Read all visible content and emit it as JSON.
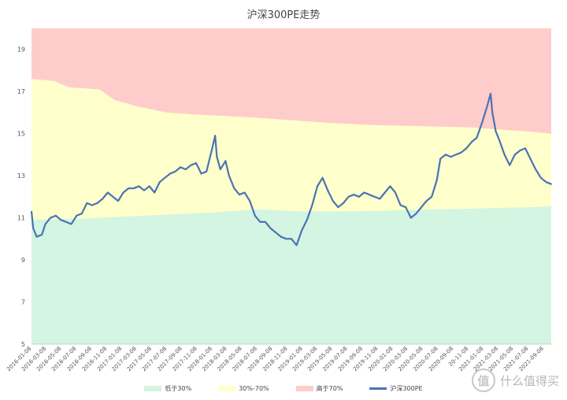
{
  "chart_data": {
    "type": "area",
    "title": "沪深300PE走势",
    "xlabel": "",
    "ylabel": "",
    "ylim": [
      5,
      20
    ],
    "xlim": [
      "2016-01-08",
      "2021-10-08"
    ],
    "yticks": [
      5,
      7,
      9,
      11,
      13,
      15,
      17,
      19
    ],
    "xticks": [
      "2016-01-08",
      "2016-03-08",
      "2016-05-08",
      "2016-07-08",
      "2016-09-08",
      "2016-11-08",
      "2017-01-08",
      "2017-03-08",
      "2017-05-08",
      "2017-07-08",
      "2017-09-08",
      "2017-11-08",
      "2018-01-08",
      "2018-03-08",
      "2018-05-08",
      "2018-07-08",
      "2018-09-08",
      "2018-11-08",
      "2019-01-08",
      "2019-03-08",
      "2019-05-08",
      "2019-07-08",
      "2019-09-08",
      "2019-11-08",
      "2020-01-08",
      "2020-03-08",
      "2020-05-08",
      "2020-07-08",
      "2020-09-08",
      "20-11-08",
      "2021-01-08",
      "2021-03-08",
      "2021-05-08",
      "2021-07-08",
      "2021-09-08"
    ],
    "legend_position": "bottom",
    "grid": false,
    "series": [
      {
        "name": "低于30%",
        "kind": "band",
        "color": "#d3f5e1",
        "x": [
          "2016-01-08",
          "2016-07-08",
          "2017-01-08",
          "2017-07-08",
          "2018-01-08",
          "2018-07-08",
          "2019-01-08",
          "2019-07-08",
          "2020-01-08",
          "2020-07-08",
          "2021-01-08",
          "2021-07-08",
          "2021-10-08"
        ],
        "values": [
          10.9,
          10.95,
          11.05,
          11.15,
          11.25,
          11.4,
          11.3,
          11.3,
          11.35,
          11.4,
          11.45,
          11.5,
          11.55
        ]
      },
      {
        "name": "30%-70%",
        "kind": "band",
        "color": "#ffffcc",
        "x": [
          "2016-01-08",
          "2016-04-08",
          "2016-06-08",
          "2016-10-08",
          "2016-12-08",
          "2017-03-08",
          "2017-07-08",
          "2017-11-08",
          "2018-05-08",
          "2018-11-08",
          "2019-05-08",
          "2019-11-08",
          "2020-05-08",
          "2020-11-08",
          "2021-03-08",
          "2021-07-08",
          "2021-10-08"
        ],
        "values": [
          17.6,
          17.5,
          17.2,
          17.1,
          16.6,
          16.3,
          16.0,
          15.9,
          15.8,
          15.65,
          15.5,
          15.4,
          15.35,
          15.3,
          15.2,
          15.1,
          15.0
        ]
      },
      {
        "name": "高于70%",
        "kind": "band",
        "color": "#ffcccc",
        "x": [
          "2016-01-08",
          "2021-10-08"
        ],
        "values": [
          20,
          20
        ]
      },
      {
        "name": "沪深300PE",
        "kind": "line",
        "color": "#4a73b5",
        "x": [
          "2016-01-08",
          "2016-01-15",
          "2016-01-29",
          "2016-02-19",
          "2016-03-04",
          "2016-03-25",
          "2016-04-15",
          "2016-05-06",
          "2016-05-27",
          "2016-06-17",
          "2016-07-08",
          "2016-07-29",
          "2016-08-19",
          "2016-09-09",
          "2016-09-30",
          "2016-10-21",
          "2016-11-11",
          "2016-12-02",
          "2016-12-23",
          "2017-01-13",
          "2017-02-03",
          "2017-02-24",
          "2017-03-17",
          "2017-04-07",
          "2017-04-28",
          "2017-05-19",
          "2017-06-09",
          "2017-06-30",
          "2017-07-21",
          "2017-08-11",
          "2017-09-01",
          "2017-09-22",
          "2017-10-13",
          "2017-11-03",
          "2017-11-24",
          "2017-12-15",
          "2018-01-05",
          "2018-01-19",
          "2018-01-26",
          "2018-02-09",
          "2018-03-02",
          "2018-03-16",
          "2018-04-06",
          "2018-04-27",
          "2018-05-18",
          "2018-06-08",
          "2018-06-29",
          "2018-07-20",
          "2018-08-10",
          "2018-08-31",
          "2018-09-21",
          "2018-10-12",
          "2018-11-02",
          "2018-11-23",
          "2018-12-14",
          "2019-01-04",
          "2019-01-25",
          "2019-02-15",
          "2019-03-08",
          "2019-03-29",
          "2019-04-19",
          "2019-05-10",
          "2019-05-31",
          "2019-06-21",
          "2019-07-12",
          "2019-08-02",
          "2019-08-23",
          "2019-09-13",
          "2019-10-04",
          "2019-10-25",
          "2019-11-15",
          "2019-12-06",
          "2019-12-27",
          "2020-01-17",
          "2020-02-07",
          "2020-02-28",
          "2020-03-20",
          "2020-04-10",
          "2020-05-01",
          "2020-05-22",
          "2020-06-12",
          "2020-07-03",
          "2020-07-17",
          "2020-08-07",
          "2020-08-28",
          "2020-09-18",
          "2020-10-09",
          "2020-10-30",
          "2020-11-20",
          "2020-12-11",
          "2021-01-01",
          "2021-01-22",
          "2021-02-05",
          "2021-02-12",
          "2021-02-26",
          "2021-03-12",
          "2021-04-02",
          "2021-04-23",
          "2021-05-14",
          "2021-06-04",
          "2021-06-25",
          "2021-07-16",
          "2021-08-06",
          "2021-08-27",
          "2021-09-17",
          "2021-10-08"
        ],
        "values": [
          11.3,
          10.5,
          10.1,
          10.2,
          10.7,
          11.0,
          11.1,
          10.9,
          10.8,
          10.7,
          11.1,
          11.2,
          11.7,
          11.6,
          11.7,
          11.9,
          12.2,
          12.0,
          11.8,
          12.2,
          12.4,
          12.4,
          12.5,
          12.3,
          12.5,
          12.2,
          12.7,
          12.9,
          13.1,
          13.2,
          13.4,
          13.3,
          13.5,
          13.6,
          13.1,
          13.2,
          14.2,
          14.9,
          13.9,
          13.3,
          13.7,
          13.0,
          12.4,
          12.1,
          12.2,
          11.8,
          11.1,
          10.8,
          10.8,
          10.5,
          10.3,
          10.1,
          10.0,
          10.0,
          9.7,
          10.4,
          10.9,
          11.6,
          12.5,
          12.9,
          12.3,
          11.8,
          11.5,
          11.7,
          12.0,
          12.1,
          12.0,
          12.2,
          12.1,
          12.0,
          11.9,
          12.2,
          12.5,
          12.2,
          11.6,
          11.5,
          11.0,
          11.2,
          11.5,
          11.8,
          12.0,
          12.8,
          13.8,
          14.0,
          13.9,
          14.0,
          14.1,
          14.3,
          14.6,
          14.8,
          15.5,
          16.3,
          16.9,
          16.0,
          15.1,
          14.7,
          14.0,
          13.5,
          14.0,
          14.2,
          14.3,
          13.8,
          13.3,
          12.9,
          12.7,
          12.6
        ]
      }
    ]
  },
  "watermark": {
    "text": "什么值得买",
    "logo": "值"
  }
}
